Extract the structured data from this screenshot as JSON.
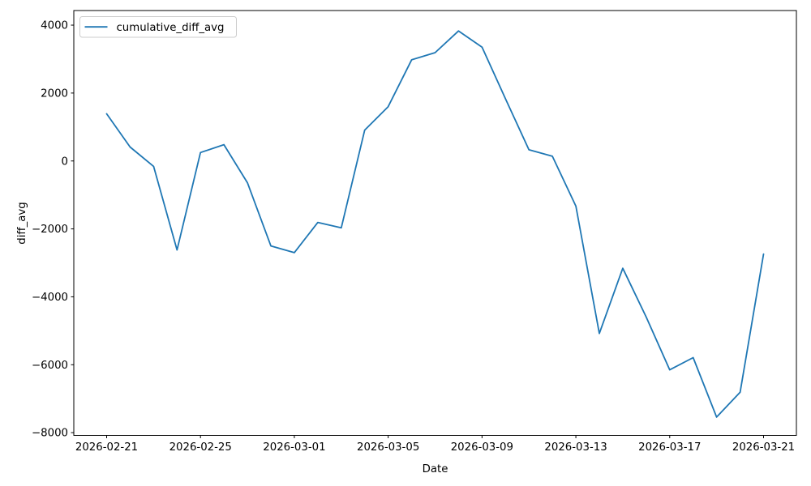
{
  "chart_data": {
    "type": "line",
    "title": "",
    "xlabel": "Date",
    "ylabel": "diff_avg",
    "grid": false,
    "legend_position": "upper left",
    "background_color": "#ffffff",
    "line_color": "#1f77b4",
    "x": [
      "2026-02-21",
      "2026-02-22",
      "2026-02-23",
      "2026-02-24",
      "2026-02-25",
      "2026-02-26",
      "2026-02-27",
      "2026-02-28",
      "2026-03-01",
      "2026-03-02",
      "2026-03-03",
      "2026-03-04",
      "2026-03-05",
      "2026-03-06",
      "2026-03-07",
      "2026-03-08",
      "2026-03-09",
      "2026-03-10",
      "2026-03-11",
      "2026-03-12",
      "2026-03-13",
      "2026-03-14",
      "2026-03-15",
      "2026-03-16",
      "2026-03-17",
      "2026-03-18",
      "2026-03-19",
      "2026-03-20",
      "2026-03-21"
    ],
    "series": [
      {
        "name": "cumulative_diff_avg",
        "values": [
          1390,
          410,
          -160,
          -2620,
          250,
          480,
          -640,
          -2500,
          -2700,
          -1810,
          -1970,
          910,
          1600,
          2980,
          3190,
          3830,
          3350,
          1830,
          330,
          140,
          -1330,
          -5080,
          -3160,
          -4600,
          -6150,
          -5790,
          -7540,
          -6810,
          -2740
        ]
      }
    ],
    "xticks": {
      "labels": [
        "2026-02-21",
        "2026-02-25",
        "2026-03-01",
        "2026-03-05",
        "2026-03-09",
        "2026-03-13",
        "2026-03-17",
        "2026-03-21"
      ],
      "day_index": [
        0,
        4,
        8,
        12,
        16,
        20,
        24,
        28
      ]
    },
    "yticks": {
      "values": [
        4000,
        2000,
        0,
        -2000,
        -4000,
        -6000,
        -8000
      ],
      "labels": [
        "4000",
        "2000",
        "0",
        "−2000",
        "−4000",
        "−6000",
        "−8000"
      ]
    },
    "ylim": [
      -8080,
      4430
    ],
    "xlim_days": [
      -1.4,
      29.4
    ]
  }
}
